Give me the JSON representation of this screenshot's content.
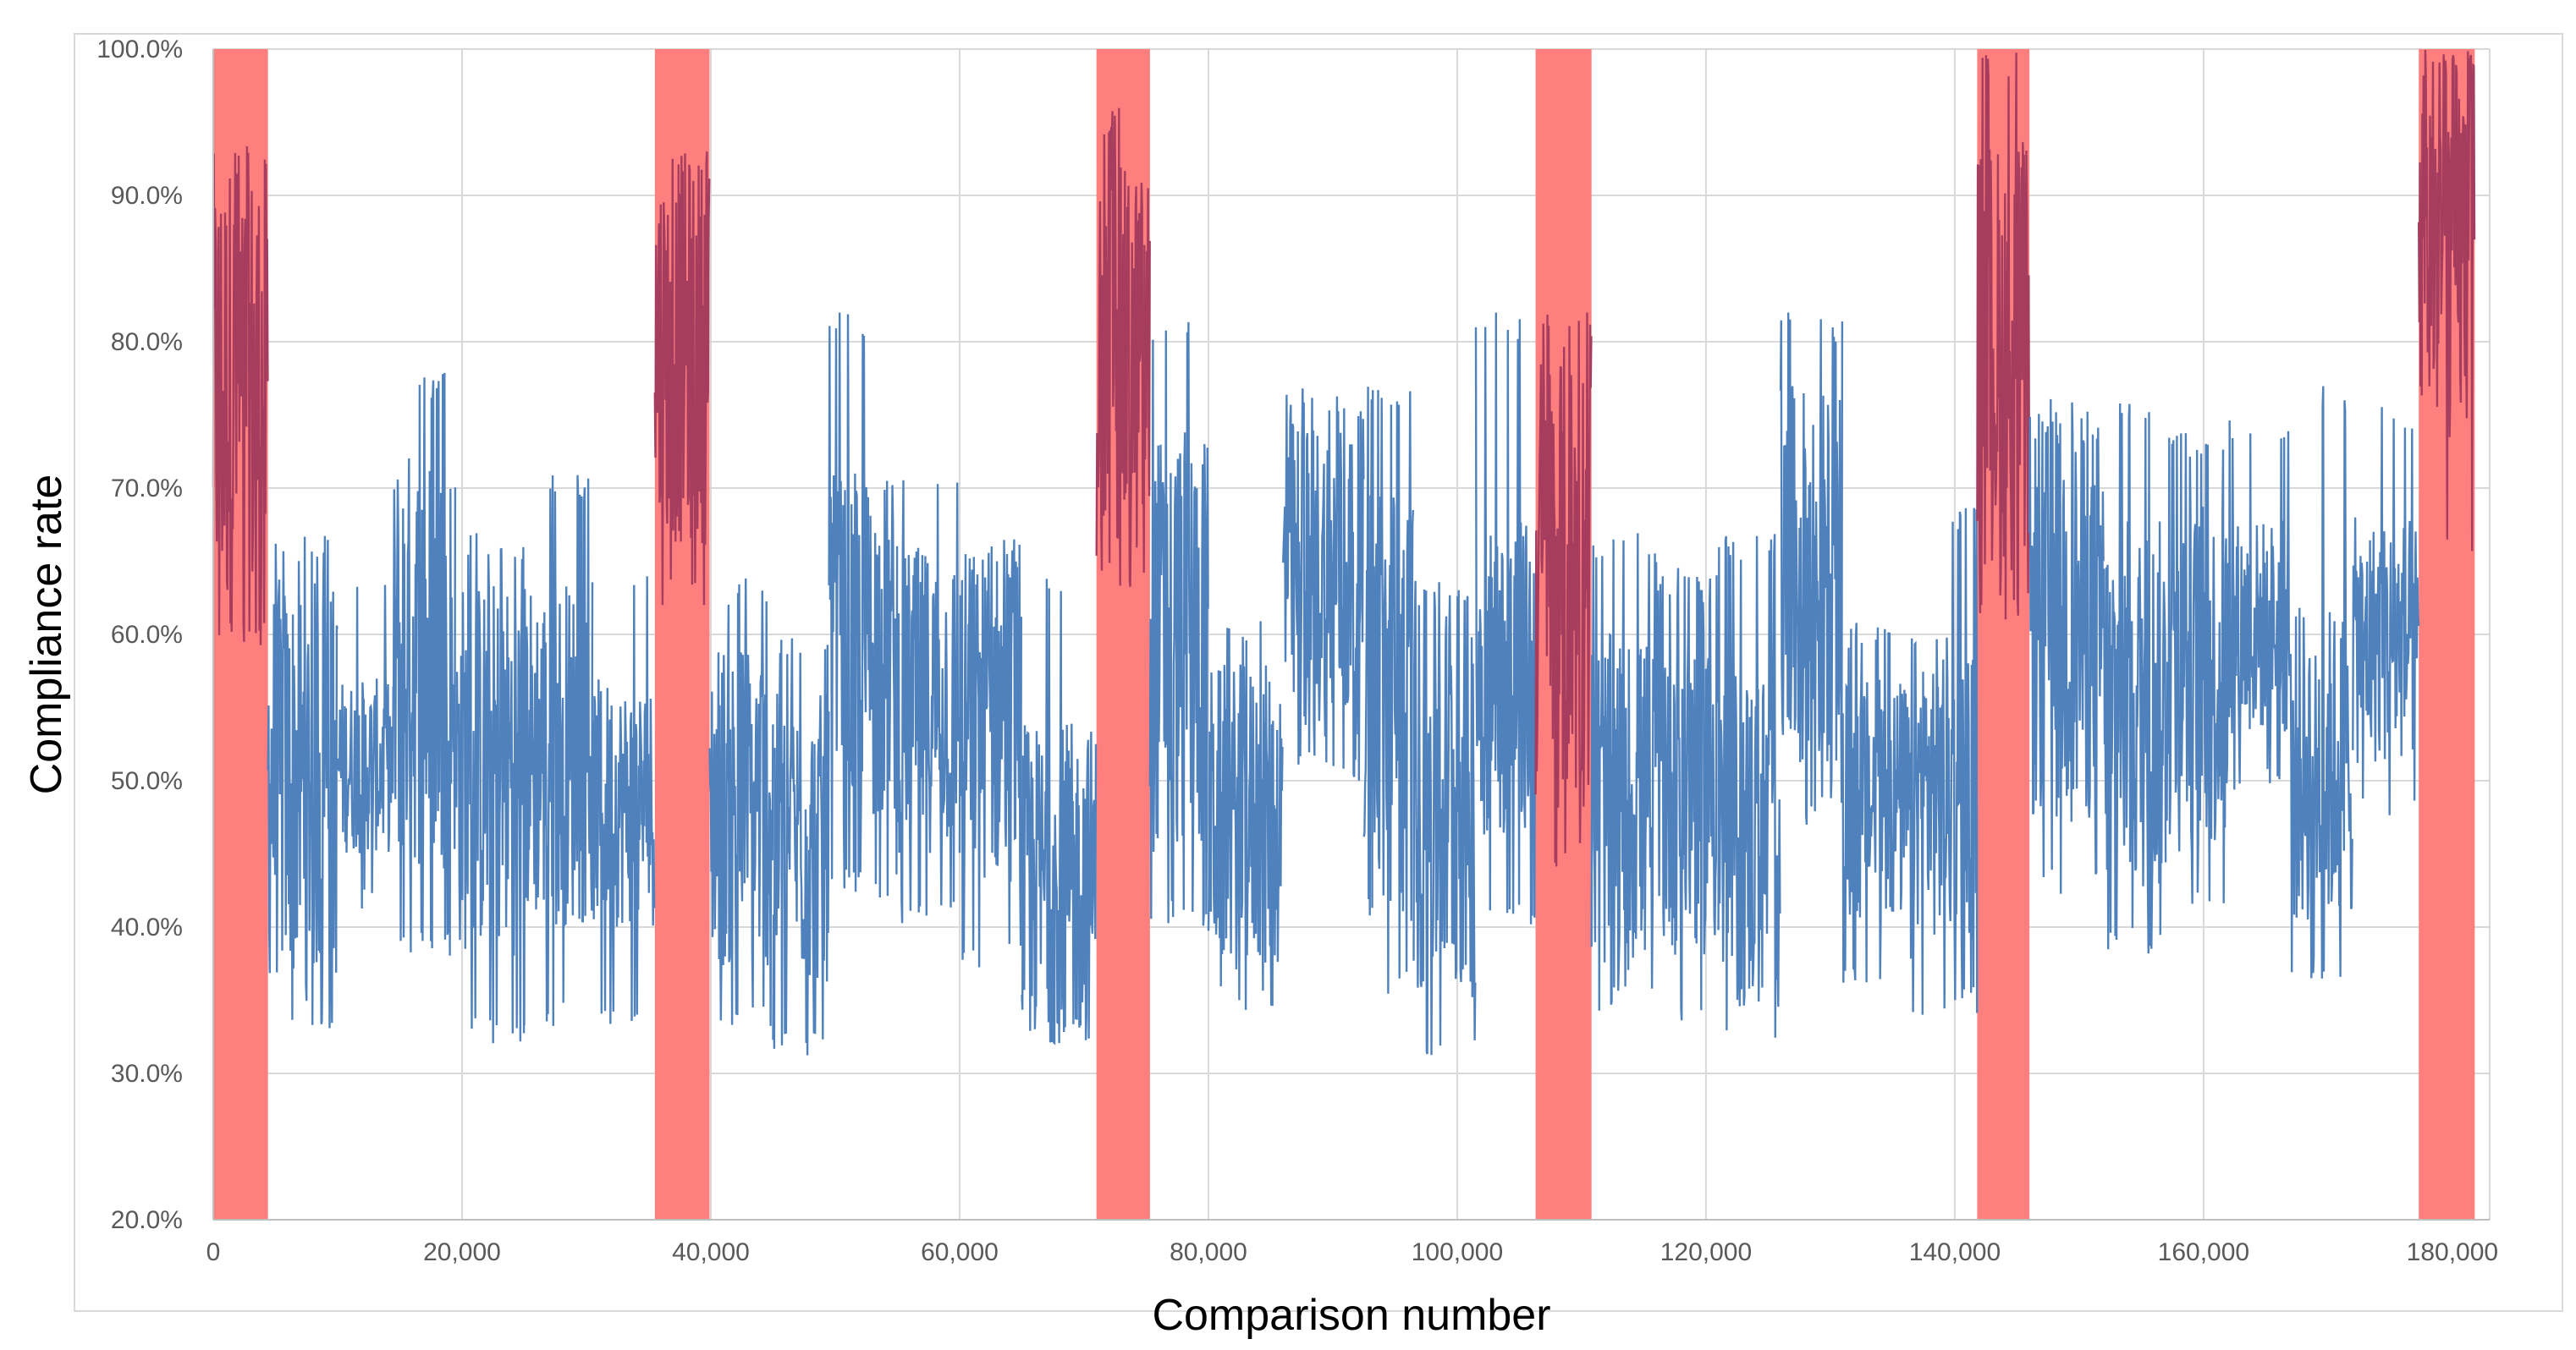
{
  "chart_data": {
    "type": "line",
    "title": "",
    "xlabel": "Comparison number",
    "ylabel": "Compliance rate",
    "xlim": [
      0,
      183000
    ],
    "ylim": [
      20,
      100
    ],
    "grid": true,
    "legend": "none",
    "x_ticks": [
      {
        "value": 0,
        "label": "0"
      },
      {
        "value": 20000,
        "label": "20,000"
      },
      {
        "value": 40000,
        "label": "40,000"
      },
      {
        "value": 60000,
        "label": "60,000"
      },
      {
        "value": 80000,
        "label": "80,000"
      },
      {
        "value": 100000,
        "label": "100,000"
      },
      {
        "value": 120000,
        "label": "120,000"
      },
      {
        "value": 140000,
        "label": "140,000"
      },
      {
        "value": 160000,
        "label": "160,000"
      },
      {
        "value": 180000,
        "label": "180,000"
      }
    ],
    "y_ticks": [
      {
        "value": 20,
        "label": "20.0%"
      },
      {
        "value": 30,
        "label": "30.0%"
      },
      {
        "value": 40,
        "label": "40.0%"
      },
      {
        "value": 50,
        "label": "50.0%"
      },
      {
        "value": 60,
        "label": "60.0%"
      },
      {
        "value": 70,
        "label": "70.0%"
      },
      {
        "value": 80,
        "label": "80.0%"
      },
      {
        "value": 90,
        "label": "90.0%"
      },
      {
        "value": 100,
        "label": "100.0%"
      }
    ],
    "highlight_bands": [
      {
        "x_start": 0,
        "x_end": 4400
      },
      {
        "x_start": 35500,
        "x_end": 39900
      },
      {
        "x_start": 71000,
        "x_end": 75300
      },
      {
        "x_start": 106300,
        "x_end": 110800
      },
      {
        "x_start": 141800,
        "x_end": 146000
      },
      {
        "x_start": 177300,
        "x_end": 181800
      }
    ],
    "series": [
      {
        "name": "Compliance rate",
        "segments": [
          {
            "x_start": 0,
            "x_end": 4400,
            "low": 60,
            "high": 93,
            "spike_low": 59,
            "spike_high": 94
          },
          {
            "x_start": 4400,
            "x_end": 10000,
            "low": 36,
            "high": 64,
            "spike_low": 33,
            "spike_high": 67
          },
          {
            "x_start": 10000,
            "x_end": 14500,
            "low": 45,
            "high": 57,
            "spike_low": 41,
            "spike_high": 64
          },
          {
            "x_start": 14500,
            "x_end": 19500,
            "low": 44,
            "high": 73,
            "spike_low": 38,
            "spike_high": 78
          },
          {
            "x_start": 19500,
            "x_end": 25000,
            "low": 38,
            "high": 64,
            "spike_low": 32,
            "spike_high": 67
          },
          {
            "x_start": 25000,
            "x_end": 30500,
            "low": 40,
            "high": 64,
            "spike_low": 33,
            "spike_high": 71
          },
          {
            "x_start": 30500,
            "x_end": 35500,
            "low": 40,
            "high": 57,
            "spike_low": 33,
            "spike_high": 64
          },
          {
            "x_start": 35500,
            "x_end": 39900,
            "low": 66,
            "high": 93,
            "spike_low": 62,
            "spike_high": 94
          },
          {
            "x_start": 39900,
            "x_end": 45000,
            "low": 37,
            "high": 60,
            "spike_low": 33,
            "spike_high": 64
          },
          {
            "x_start": 45000,
            "x_end": 49500,
            "low": 36,
            "high": 56,
            "spike_low": 31,
            "spike_high": 60
          },
          {
            "x_start": 49500,
            "x_end": 55000,
            "low": 47,
            "high": 71,
            "spike_low": 42,
            "spike_high": 82
          },
          {
            "x_start": 55000,
            "x_end": 60000,
            "low": 45,
            "high": 66,
            "spike_low": 40,
            "spike_high": 72
          },
          {
            "x_start": 60000,
            "x_end": 65000,
            "low": 43,
            "high": 66,
            "spike_low": 37,
            "spike_high": 67
          },
          {
            "x_start": 65000,
            "x_end": 71000,
            "low": 32,
            "high": 54,
            "spike_low": 32,
            "spike_high": 64
          },
          {
            "x_start": 71000,
            "x_end": 75300,
            "low": 65,
            "high": 92,
            "spike_low": 63,
            "spike_high": 96
          },
          {
            "x_start": 75300,
            "x_end": 80000,
            "low": 45,
            "high": 74,
            "spike_low": 40,
            "spike_high": 82
          },
          {
            "x_start": 80000,
            "x_end": 86000,
            "low": 37,
            "high": 58,
            "spike_low": 34,
            "spike_high": 61
          },
          {
            "x_start": 86000,
            "x_end": 92500,
            "low": 53,
            "high": 75,
            "spike_low": 50,
            "spike_high": 77
          },
          {
            "x_start": 92500,
            "x_end": 96500,
            "low": 40,
            "high": 71,
            "spike_low": 35,
            "spike_high": 77
          },
          {
            "x_start": 96500,
            "x_end": 101500,
            "low": 35,
            "high": 63,
            "spike_low": 31,
            "spike_high": 64
          },
          {
            "x_start": 101500,
            "x_end": 106300,
            "low": 46,
            "high": 68,
            "spike_low": 40,
            "spike_high": 82
          },
          {
            "x_start": 106300,
            "x_end": 110800,
            "low": 48,
            "high": 80,
            "spike_low": 44,
            "spike_high": 82
          },
          {
            "x_start": 110800,
            "x_end": 116000,
            "low": 37,
            "high": 60,
            "spike_low": 34,
            "spike_high": 67
          },
          {
            "x_start": 116000,
            "x_end": 121000,
            "low": 38,
            "high": 64,
            "spike_low": 33,
            "spike_high": 65
          },
          {
            "x_start": 121000,
            "x_end": 126000,
            "low": 34,
            "high": 58,
            "spike_low": 31,
            "spike_high": 67
          },
          {
            "x_start": 126000,
            "x_end": 131000,
            "low": 50,
            "high": 77,
            "spike_low": 47,
            "spike_high": 82
          },
          {
            "x_start": 131000,
            "x_end": 136500,
            "low": 40,
            "high": 57,
            "spike_low": 36,
            "spike_high": 61
          },
          {
            "x_start": 136500,
            "x_end": 141800,
            "low": 39,
            "high": 60,
            "spike_low": 34,
            "spike_high": 69
          },
          {
            "x_start": 141800,
            "x_end": 146000,
            "low": 64,
            "high": 94,
            "spike_low": 61,
            "spike_high": 100
          },
          {
            "x_start": 146000,
            "x_end": 152000,
            "low": 47,
            "high": 75,
            "spike_low": 42,
            "spike_high": 77
          },
          {
            "x_start": 152000,
            "x_end": 157000,
            "low": 42,
            "high": 68,
            "spike_low": 38,
            "spike_high": 76
          },
          {
            "x_start": 157000,
            "x_end": 162000,
            "low": 45,
            "high": 69,
            "spike_low": 41,
            "spike_high": 74
          },
          {
            "x_start": 162000,
            "x_end": 167000,
            "low": 53,
            "high": 68,
            "spike_low": 49,
            "spike_high": 75
          },
          {
            "x_start": 167000,
            "x_end": 172000,
            "low": 40,
            "high": 62,
            "spike_low": 36,
            "spike_high": 77
          },
          {
            "x_start": 172000,
            "x_end": 177300,
            "low": 51,
            "high": 68,
            "spike_low": 47,
            "spike_high": 76
          },
          {
            "x_start": 177300,
            "x_end": 181800,
            "low": 73,
            "high": 100,
            "spike_low": 65,
            "spike_high": 100
          }
        ]
      }
    ],
    "colors": {
      "line": "#4f81bd",
      "line_in_band": "#a63d5e",
      "band": "#ff7f7f",
      "grid": "#d9d9d9",
      "border": "#d9d9d9",
      "tick_text": "#595959",
      "axis_title": "#000000"
    }
  }
}
